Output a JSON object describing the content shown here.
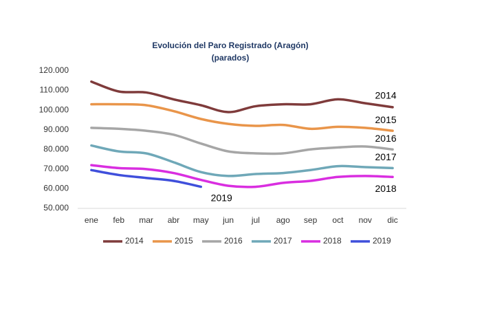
{
  "chart_data": {
    "type": "line",
    "title": "Evolución del Paro Registrado (Aragón)",
    "subtitle": "(parados)",
    "categories": [
      "ene",
      "feb",
      "mar",
      "abr",
      "may",
      "jun",
      "jul",
      "ago",
      "sep",
      "oct",
      "nov",
      "dic"
    ],
    "series": [
      {
        "name": "2014",
        "color": "#7f3b3b",
        "values": [
          114500,
          109500,
          109000,
          105500,
          102500,
          99000,
          102000,
          103000,
          103000,
          105500,
          103500,
          101500
        ]
      },
      {
        "name": "2015",
        "color": "#e9954a",
        "values": [
          103000,
          103000,
          102500,
          99500,
          95500,
          93000,
          92000,
          92500,
          90500,
          91500,
          91000,
          89500
        ]
      },
      {
        "name": "2016",
        "color": "#a6a6a6",
        "values": [
          91000,
          90500,
          89500,
          87500,
          83000,
          79000,
          78000,
          78000,
          80000,
          81000,
          81500,
          80000
        ]
      },
      {
        "name": "2017",
        "color": "#6fa8b8",
        "values": [
          82000,
          79000,
          78000,
          73500,
          68500,
          66500,
          67500,
          68000,
          69500,
          71500,
          71000,
          70500
        ]
      },
      {
        "name": "2018",
        "color": "#d92ee0",
        "values": [
          72000,
          70500,
          70000,
          68000,
          64500,
          61500,
          61000,
          63000,
          64000,
          66000,
          66500,
          66000
        ]
      },
      {
        "name": "2019",
        "color": "#3f4fdb",
        "values": [
          69500,
          67000,
          65500,
          64000,
          61000,
          null,
          null,
          null,
          null,
          null,
          null,
          null
        ]
      }
    ],
    "ylim": [
      50000,
      120000
    ],
    "yticks": [
      {
        "value": 50000,
        "label": "50.000"
      },
      {
        "value": 60000,
        "label": "60.000"
      },
      {
        "value": 70000,
        "label": "70.000"
      },
      {
        "value": 80000,
        "label": "80.000"
      },
      {
        "value": 90000,
        "label": "90.000"
      },
      {
        "value": 100000,
        "label": "100.000"
      },
      {
        "value": 110000,
        "label": "110.000"
      },
      {
        "value": 120000,
        "label": "120.000"
      }
    ],
    "grid": false
  }
}
